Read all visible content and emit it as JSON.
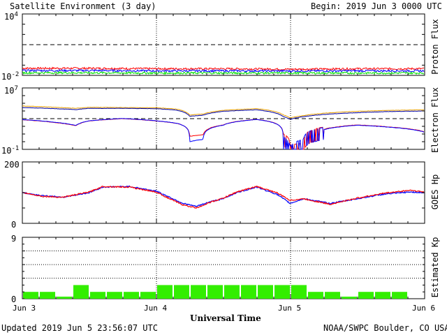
{
  "header": {
    "title": "Satellite Environment (3 day)",
    "begin": "Begin:  2019 Jun 3 0000 UTC"
  },
  "footer": {
    "updated": "Updated 2019 Jun  5 23:56:07 UTC",
    "credit": "NOAA/SWPC Boulder, CO USA"
  },
  "xaxis": {
    "label": "Universal Time",
    "ticks": [
      "Jun 3",
      "Jun 4",
      "Jun 5",
      "Jun 6"
    ]
  },
  "panels": {
    "proton": {
      "ylabel": "Proton Flux",
      "ymax": "10",
      "ymax_exp": "4",
      "ymin": "10",
      "ymin_exp": "-2"
    },
    "electron": {
      "ylabel": "Electron Flux",
      "ymax": "10",
      "ymax_exp": "7",
      "ymin": "10",
      "ymin_exp": "-1"
    },
    "hp": {
      "ylabel": "GOES Hp",
      "ymax": "200",
      "ymin": "0"
    },
    "kp": {
      "ylabel": "Estimated Kp",
      "ymax": "9",
      "ymin": "0"
    }
  },
  "colors": {
    "red": "#ff0000",
    "blue": "#0000ff",
    "green": "#00e000",
    "orange": "#e8a000",
    "navy": "#0000a0",
    "kp_bar": "#33ee00"
  },
  "chart_data": [
    {
      "type": "line",
      "title": "Proton Flux",
      "yscale": "log",
      "ylim": [
        0.01,
        10000
      ],
      "x": [
        0,
        0.5,
        1,
        1.5,
        2,
        2.5,
        3
      ],
      "threshold": 10,
      "series": [
        {
          "values": [
            0.05,
            0.05,
            0.045,
            0.045,
            0.04,
            0.045,
            0.045
          ]
        },
        {
          "values": [
            0.03,
            0.03,
            0.028,
            0.028,
            0.027,
            0.028,
            0.028
          ]
        },
        {
          "values": [
            0.018,
            0.018,
            0.017,
            0.017,
            0.017,
            0.017,
            0.017
          ]
        }
      ]
    },
    {
      "type": "line",
      "title": "Electron Flux",
      "yscale": "log",
      "ylim": [
        0.1,
        10000000
      ],
      "threshold": 1000,
      "x": [
        0,
        0.25,
        0.4,
        0.5,
        0.75,
        1.0,
        1.15,
        1.25,
        1.35,
        1.5,
        1.75,
        1.95,
        2.0,
        2.1,
        2.25,
        2.5,
        2.75,
        3.0
      ],
      "series": [
        {
          "values": [
            45000,
            30000,
            22000,
            30000,
            28000,
            26000,
            18000,
            3000,
            4000,
            12000,
            20000,
            3000,
            1200,
            2500,
            5000,
            9000,
            12000,
            14000
          ]
        },
        {
          "values": [
            28000,
            20000,
            15000,
            22000,
            22000,
            20000,
            13000,
            2000,
            2800,
            9000,
            14000,
            1800,
            800,
            1800,
            3500,
            6000,
            8500,
            10000
          ]
        },
        {
          "values": [
            700,
            300,
            120,
            500,
            1000,
            500,
            250,
            5,
            8,
            150,
            800,
            5,
            0.2,
            0.3,
            40,
            150,
            80,
            20
          ]
        },
        {
          "values": [
            750,
            320,
            130,
            520,
            1050,
            520,
            260,
            1,
            2,
            140,
            780,
            2,
            0.1,
            1,
            35,
            140,
            75,
            18
          ]
        }
      ]
    },
    {
      "type": "line",
      "title": "GOES Hp",
      "ylim": [
        0,
        200
      ],
      "x": [
        0,
        0.15,
        0.3,
        0.5,
        0.6,
        0.8,
        1.0,
        1.1,
        1.2,
        1.3,
        1.4,
        1.5,
        1.6,
        1.75,
        1.9,
        2.0,
        2.1,
        2.3,
        2.5,
        2.7,
        2.9,
        3.0
      ],
      "series": [
        {
          "values": [
            100,
            90,
            85,
            100,
            118,
            120,
            105,
            85,
            65,
            55,
            70,
            80,
            100,
            118,
            95,
            65,
            80,
            65,
            80,
            95,
            102,
            100
          ]
        },
        {
          "values": [
            100,
            88,
            85,
            102,
            120,
            118,
            102,
            80,
            60,
            50,
            68,
            82,
            102,
            120,
            100,
            75,
            80,
            62,
            82,
            98,
            108,
            102
          ]
        }
      ]
    },
    {
      "type": "bar",
      "title": "Estimated Kp",
      "ylim": [
        0,
        9
      ],
      "x": [
        0,
        0.125,
        0.25,
        0.375,
        0.5,
        0.625,
        0.75,
        0.875,
        1.0,
        1.125,
        1.25,
        1.375,
        1.5,
        1.625,
        1.75,
        1.875,
        2.0,
        2.125,
        2.25,
        2.375,
        2.5,
        2.625,
        2.75,
        2.875
      ],
      "values": [
        1,
        1,
        0.3,
        2,
        1,
        1,
        1,
        1,
        2,
        2,
        2,
        2,
        2,
        2,
        2,
        2,
        2,
        1,
        1,
        0.3,
        1,
        1,
        1,
        0
      ]
    }
  ]
}
